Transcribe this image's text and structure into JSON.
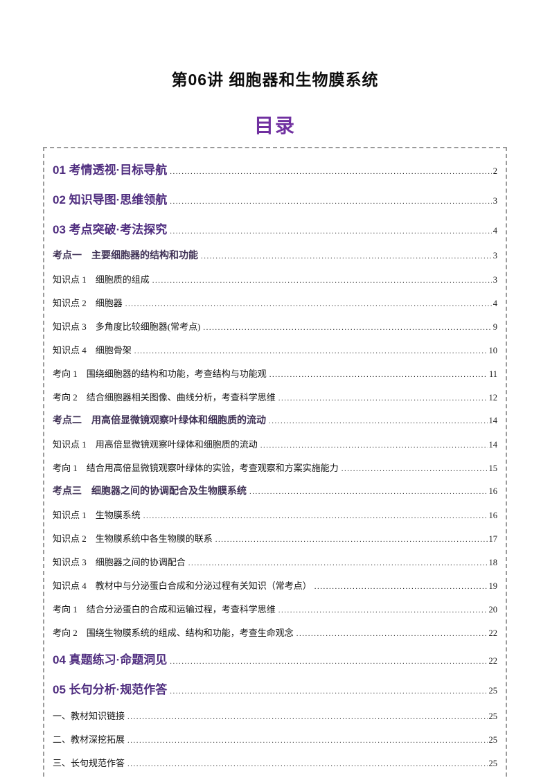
{
  "document": {
    "title": "第06讲 细胞器和生物膜系统",
    "toc_heading": "目录"
  },
  "colors": {
    "toc_heading_purple": "#7030A0",
    "section_purple": "#4F2D7F",
    "kaodian_dark_purple": "#3F3155",
    "body_text": "#141414",
    "border_gray": "#9a9a9a"
  },
  "toc_entries": [
    {
      "type": "section",
      "label": "01 考情透视·目标导航",
      "page": "2"
    },
    {
      "type": "section",
      "label": "02 知识导图·思维领航",
      "page": "3"
    },
    {
      "type": "section",
      "label": "03 考点突破·考法探究",
      "page": "4"
    },
    {
      "type": "kaodian",
      "label": "考点一　主要细胞器的结构和功能",
      "page": "3"
    },
    {
      "type": "body",
      "label": "知识点 1　细胞质的组成",
      "page": "3"
    },
    {
      "type": "body",
      "label": "知识点 2　细胞器",
      "page": "4"
    },
    {
      "type": "body",
      "label": "知识点 3　多角度比较细胞器(常考点)",
      "page": "9"
    },
    {
      "type": "body",
      "label": "知识点 4　细胞骨架",
      "page": "10"
    },
    {
      "type": "body",
      "label": "考向 1　围绕细胞器的结构和功能，考查结构与功能观",
      "page": "11"
    },
    {
      "type": "body",
      "label": "考向 2　结合细胞器相关图像、曲线分析，考查科学思维",
      "page": "12"
    },
    {
      "type": "kaodian",
      "label": "考点二　用高倍显微镜观察叶绿体和细胞质的流动",
      "page": "14"
    },
    {
      "type": "body",
      "label": "知识点 1　用高倍显微镜观察叶绿体和细胞质的流动",
      "page": "14"
    },
    {
      "type": "body",
      "label": "考向 1　结合用高倍显微镜观察叶绿体的实验，考查观察和方案实施能力",
      "page": "15"
    },
    {
      "type": "kaodian",
      "label": "考点三　细胞器之间的协调配合及生物膜系统",
      "page": "16"
    },
    {
      "type": "body",
      "label": "知识点 1　生物膜系统",
      "page": "16"
    },
    {
      "type": "body",
      "label": "知识点 2　生物膜系统中各生物膜的联系",
      "page": "17"
    },
    {
      "type": "body",
      "label": "知识点 3　细胞器之间的协调配合",
      "page": "18"
    },
    {
      "type": "body",
      "label": "知识点 4　教材中与分泌蛋白合成和分泌过程有关知识（常考点）",
      "page": "19"
    },
    {
      "type": "body",
      "label": "考向 1　结合分泌蛋白的合成和运输过程，考查科学思维",
      "page": "20"
    },
    {
      "type": "body",
      "label": "考向 2　围绕生物膜系统的组成、结构和功能，考查生命观念",
      "page": "22"
    },
    {
      "type": "section",
      "label": "04 真题练习·命题洞见",
      "page": "22"
    },
    {
      "type": "section",
      "label": "05 长句分析·规范作答",
      "page": "25"
    },
    {
      "type": "body",
      "label": "一、教材知识链接",
      "page": "25"
    },
    {
      "type": "body",
      "label": "二、教材深挖拓展",
      "page": "25"
    },
    {
      "type": "body",
      "label": "三、长句规范作答",
      "page": "25"
    }
  ]
}
